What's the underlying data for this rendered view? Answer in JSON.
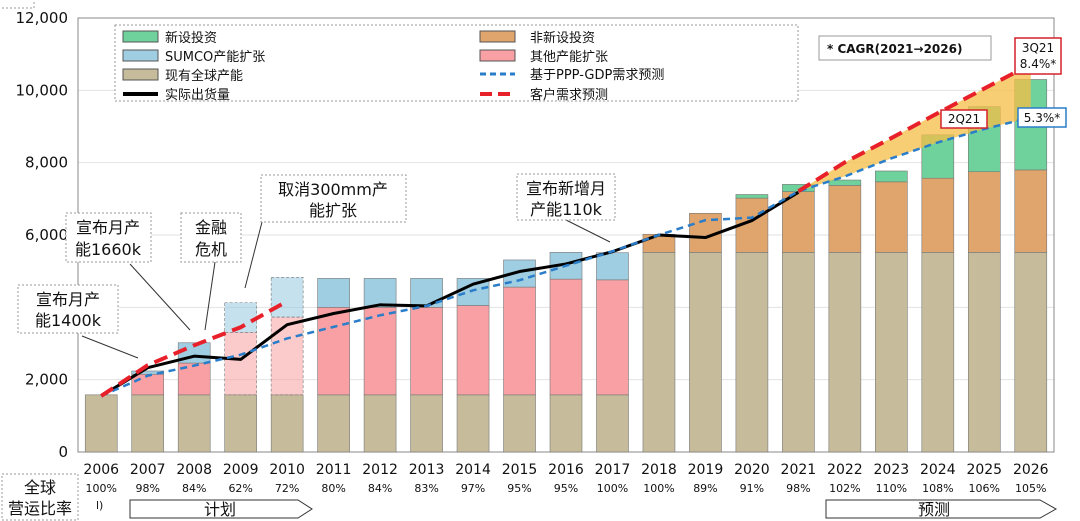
{
  "chart_data": {
    "type": "bar",
    "title": "",
    "xlabel": "",
    "ylabel": "",
    "ylim": [
      0,
      12000
    ],
    "yticks": [
      "0",
      "2,000",
      "4,000",
      "6,000",
      "8,000",
      "10,000",
      "12,000"
    ],
    "categories": [
      "2006",
      "2007",
      "2008",
      "2009",
      "2010",
      "2011",
      "2012",
      "2013",
      "2014",
      "2015",
      "2016",
      "2017",
      "2018",
      "2019",
      "2020",
      "2021",
      "2022",
      "2023",
      "2024",
      "2025",
      "2026"
    ],
    "utilization": [
      "100%",
      "98%",
      "84%",
      "62%",
      "72%",
      "80%",
      "84%",
      "83%",
      "97%",
      "95%",
      "95%",
      "100%",
      "100%",
      "89%",
      "91%",
      "98%",
      "102%",
      "110%",
      "108%",
      "106%",
      "105%"
    ],
    "series": [
      {
        "name": "现有全球产能",
        "color": "#c6bc9b",
        "values": [
          1580,
          1580,
          1580,
          1580,
          1580,
          1580,
          1580,
          1580,
          1580,
          1580,
          1580,
          1580,
          5520,
          5520,
          5520,
          5520,
          5520,
          5520,
          5520,
          5520,
          5520
        ]
      },
      {
        "name": "其他产能扩张",
        "color": "#f8a0a3",
        "values": [
          0,
          570,
          880,
          1730,
          2150,
          2420,
          2420,
          2420,
          2470,
          2980,
          3200,
          3180,
          0,
          0,
          0,
          0,
          0,
          0,
          0,
          0,
          0
        ]
      },
      {
        "name": "非新设投资",
        "color": "#e0a56c",
        "values": [
          0,
          0,
          0,
          0,
          0,
          0,
          0,
          0,
          0,
          0,
          0,
          0,
          500,
          1080,
          1500,
          1680,
          1850,
          1950,
          2050,
          2230,
          2280
        ]
      },
      {
        "name": "SUMCO产能扩张",
        "color": "#9fcde2",
        "values": [
          0,
          90,
          560,
          820,
          1100,
          800,
          800,
          800,
          750,
          750,
          740,
          750,
          0,
          0,
          0,
          0,
          0,
          0,
          0,
          0,
          0
        ]
      },
      {
        "name": "新设投资",
        "color": "#6fd19b",
        "values": [
          0,
          0,
          0,
          0,
          0,
          0,
          0,
          0,
          0,
          0,
          0,
          0,
          0,
          0,
          100,
          200,
          150,
          300,
          1200,
          1800,
          2500
        ]
      }
    ],
    "lines": [
      {
        "name": "实际出货量",
        "color": "#000000",
        "style": "solid",
        "values": [
          1550,
          2330,
          2650,
          2560,
          3520,
          3830,
          4070,
          4040,
          4640,
          4990,
          5200,
          5540,
          6000,
          5930,
          6400,
          7180,
          null,
          null,
          null,
          null,
          null
        ]
      },
      {
        "name": "基于PPP-GDP需求预测",
        "color": "#2a7dc9",
        "style": "dashed",
        "values": [
          1550,
          2110,
          2390,
          2690,
          3140,
          3460,
          3780,
          4040,
          4470,
          4750,
          5150,
          5550,
          6000,
          6410,
          6480,
          7210,
          7620,
          8120,
          8560,
          8930,
          9250
        ]
      },
      {
        "name": "客户需求预测",
        "color": "#e8202a",
        "style": "dashed",
        "values": [
          1550,
          2400,
          2950,
          3450,
          4170,
          null,
          null,
          null,
          null,
          null,
          null,
          null,
          null,
          null,
          null,
          7210,
          8010,
          8680,
          9370,
          10050,
          10720
        ]
      }
    ],
    "legend": {
      "left": [
        "新设投资",
        "SUMCO产能扩张",
        "现有全球产能",
        "实际出货量"
      ],
      "right": [
        "非新设投资",
        "其他产能扩张",
        "基于PPP-GDP需求预测",
        "客户需求预测"
      ]
    },
    "annotations": {
      "cagr_note": "* CAGR(2021→2026)",
      "q3_label": "3Q21",
      "q3_value": "8.4%*",
      "q2_label": "2Q21",
      "q2_value": "5.3%*",
      "callout_1400": [
        "宣布月产",
        "能1400k"
      ],
      "callout_1660": [
        "宣布月产",
        "能1660k"
      ],
      "callout_crisis": [
        "金融",
        "危机"
      ],
      "callout_300mm": [
        "取消300mm产",
        "能扩张"
      ],
      "callout_110k": [
        "宣布新增月",
        "产能110k"
      ],
      "row_label": [
        "全球",
        "营运比率"
      ],
      "footnote_mark": "l)",
      "plan_label": "计划",
      "forecast_label": "预测"
    }
  }
}
